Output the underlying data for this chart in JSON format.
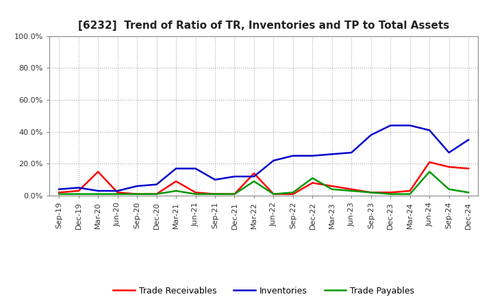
{
  "title": "[6232]  Trend of Ratio of TR, Inventories and TP to Total Assets",
  "x_labels": [
    "Sep-19",
    "Dec-19",
    "Mar-20",
    "Jun-20",
    "Sep-20",
    "Dec-20",
    "Mar-21",
    "Jun-21",
    "Sep-21",
    "Dec-21",
    "Mar-22",
    "Jun-22",
    "Sep-22",
    "Dec-22",
    "Mar-23",
    "Jun-23",
    "Sep-23",
    "Dec-23",
    "Mar-24",
    "Jun-24",
    "Sep-24",
    "Dec-24"
  ],
  "trade_receivables": [
    0.02,
    0.03,
    0.15,
    0.02,
    0.01,
    0.01,
    0.09,
    0.02,
    0.01,
    0.01,
    0.14,
    0.01,
    0.01,
    0.08,
    0.06,
    0.04,
    0.02,
    0.02,
    0.03,
    0.21,
    0.18,
    0.17
  ],
  "inventories": [
    0.04,
    0.05,
    0.03,
    0.03,
    0.06,
    0.07,
    0.17,
    0.17,
    0.1,
    0.12,
    0.12,
    0.22,
    0.25,
    0.25,
    0.26,
    0.27,
    0.38,
    0.44,
    0.44,
    0.41,
    0.27,
    0.35
  ],
  "trade_payables": [
    0.01,
    0.01,
    0.01,
    0.01,
    0.01,
    0.01,
    0.03,
    0.01,
    0.01,
    0.01,
    0.09,
    0.01,
    0.02,
    0.11,
    0.04,
    0.03,
    0.02,
    0.01,
    0.01,
    0.15,
    0.04,
    0.02
  ],
  "tr_color": "#ff0000",
  "inv_color": "#0000cc",
  "tp_color": "#009900",
  "ylim": [
    0,
    1.0
  ],
  "yticks": [
    0.0,
    0.2,
    0.4,
    0.6,
    0.8,
    1.0
  ],
  "figure_bg": "#ffffff",
  "plot_bg": "#ffffff",
  "grid_color": "#aaaaaa",
  "title_fontsize": 11,
  "legend_labels": [
    "Trade Receivables",
    "Inventories",
    "Trade Payables"
  ],
  "line_width": 1.8,
  "tick_fontsize": 8,
  "legend_fontsize": 9
}
